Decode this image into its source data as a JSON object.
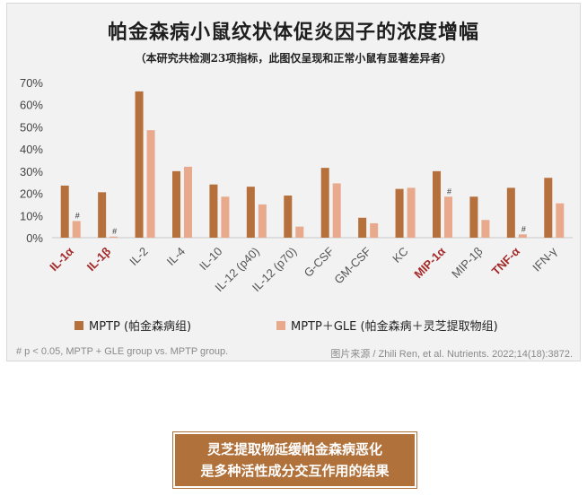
{
  "title": "帕金森病小鼠纹状体促炎因子的浓度增幅",
  "subtitle": "（本研究共检测23项指标，此图仅呈现和正常小鼠有显著差异者）",
  "colors": {
    "series1": "#b5703c",
    "series2": "#e8a98c",
    "highlight_label": "#a52a2a",
    "normal_label": "#555555"
  },
  "chart_data": {
    "type": "bar",
    "categories": [
      "IL-1α",
      "IL-1β",
      "IL-2",
      "IL-4",
      "IL-10",
      "IL-12 (p40)",
      "IL-12 (p70)",
      "G-CSF",
      "GM-CSF",
      "KC",
      "MIP-1α",
      "MIP-1β",
      "TNF-α",
      "IFN-γ"
    ],
    "highlighted_categories": [
      "IL-1α",
      "IL-1β",
      "MIP-1α",
      "TNF-α"
    ],
    "series": [
      {
        "name": "MPTP (帕金森病组)",
        "values": [
          23.5,
          20.5,
          66,
          30,
          24,
          23,
          19,
          31.5,
          9,
          22,
          30,
          18.5,
          22.5,
          27
        ]
      },
      {
        "name": "MPTP＋GLE (帕金森病＋灵芝提取物组)",
        "values": [
          7.5,
          0.5,
          48.5,
          32,
          18.5,
          15,
          5,
          24.5,
          6.5,
          22.5,
          18.5,
          8,
          1.5,
          15.5
        ]
      }
    ],
    "significance_markers": [
      {
        "category": "IL-1α",
        "series": 1,
        "label": "#"
      },
      {
        "category": "IL-1β",
        "series": 1,
        "label": "#"
      },
      {
        "category": "MIP-1α",
        "series": 1,
        "label": "#"
      },
      {
        "category": "TNF-α",
        "series": 1,
        "label": "#"
      }
    ],
    "y_ticks": [
      "0%",
      "10%",
      "20%",
      "30%",
      "40%",
      "50%",
      "60%",
      "70%"
    ],
    "ylim": [
      0,
      70
    ],
    "grid": false,
    "legend_placement": "bottom"
  },
  "legend": {
    "series1_label": "MPTP (帕金森病组)",
    "series2_label": "MPTP＋GLE (帕金森病＋灵芝提取物组)"
  },
  "footnote": "# p < 0.05, MPTP + GLE group vs. MPTP group.",
  "source": "图片来源 / Zhili Ren, et al. Nutrients. 2022;14(18):3872.",
  "caption": {
    "line1": "灵芝提取物延缓帕金森病恶化",
    "line2": "是多种活性成分交互作用的结果"
  }
}
